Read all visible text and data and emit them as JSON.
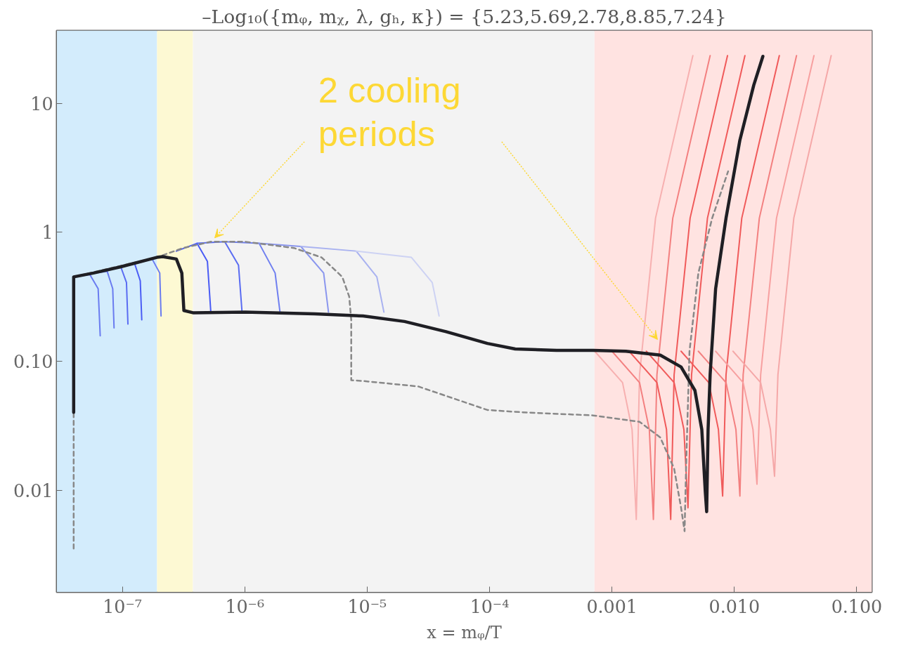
{
  "chart_data": {
    "type": "line",
    "title": "–Log₁₀({mᵩ, mᵪ, λ, gₕ, κ}) = {5.23,5.69,2.78,8.85,7.24}",
    "xlabel": "x = mᵩ/T",
    "log": "xy",
    "grid": false,
    "marker": "none",
    "xlim": [
      2.9e-08,
      0.133
    ],
    "ylim": [
      0.00163,
      36.6
    ],
    "xticks": [
      {
        "value": 1e-07,
        "label": "10⁻⁷"
      },
      {
        "value": 1e-06,
        "label": "10⁻⁶"
      },
      {
        "value": 1e-05,
        "label": "10⁻⁵"
      },
      {
        "value": 0.0001,
        "label": "10⁻⁴"
      },
      0.001,
      {
        "value": 0.01,
        "label": "0.010"
      },
      {
        "value": 0.1,
        "label": "0.100"
      }
    ],
    "yticks": [
      {
        "value": 0.01,
        "label": "0.01"
      },
      {
        "value": 0.1,
        "label": "0.10"
      },
      1,
      10
    ],
    "bands": [
      {
        "axis": "x",
        "from": 2.9e-08,
        "to": 1.92e-07,
        "color": "#d3ecfc"
      },
      {
        "axis": "x",
        "from": 1.92e-07,
        "to": 3.77e-07,
        "color": "#fdf9d3"
      },
      {
        "axis": "x",
        "from": 3.77e-07,
        "to": 0.00072,
        "color": "#f3f3f3"
      },
      {
        "axis": "x",
        "from": 0.00072,
        "to": 0.133,
        "color": "#ffe3e1"
      }
    ],
    "annotations": [
      "2 cooling periods"
    ],
    "series": [
      {
        "color": "#6a7cf0",
        "x": [
          4e-08,
          5.42e-08,
          6.34e-08,
          6.59e-08
        ],
        "values": [
          0.452,
          0.471,
          0.366,
          0.158
        ]
      },
      {
        "color": "#6a7cf0",
        "x": [
          5.8e-08,
          7.52e-08,
          8.34e-08,
          8.55e-08
        ],
        "values": [
          0.484,
          0.498,
          0.366,
          0.182
        ]
      },
      {
        "color": "#5a6cf2",
        "x": [
          7.52e-08,
          9.7e-08,
          1.08e-07,
          1.11e-07
        ],
        "values": [
          0.512,
          0.541,
          0.409,
          0.195
        ]
      },
      {
        "color": "#4a5cf5",
        "x": [
          9.7e-08,
          1.26e-07,
          1.4e-07,
          1.44e-07
        ],
        "values": [
          0.541,
          0.572,
          0.421,
          0.21
        ]
      },
      {
        "color": "#6a7cf0",
        "x": [
          1.26e-07,
          1.75e-07,
          2.02e-07,
          2.07e-07
        ],
        "values": [
          0.572,
          0.622,
          0.484,
          0.225
        ]
      },
      {
        "color": "#4a5cf5",
        "x": [
          2.76e-07,
          4.07e-07,
          4.95e-07,
          5.28e-07
        ],
        "values": [
          0.716,
          0.822,
          0.597,
          0.241
        ]
      },
      {
        "color": "#5a6cf2",
        "x": [
          4.07e-07,
          6.86e-07,
          8.89e-07,
          9.5e-07
        ],
        "values": [
          0.822,
          0.846,
          0.556,
          0.241
        ]
      },
      {
        "color": "#6f7ff0",
        "x": [
          6.86e-07,
          1.31e-06,
          1.77e-06,
          1.94e-06
        ],
        "values": [
          0.846,
          0.822,
          0.484,
          0.241
        ]
      },
      {
        "color": "#8a96ee",
        "x": [
          1.31e-06,
          2.87e-06,
          4.41e-06,
          4.83e-06
        ],
        "values": [
          0.822,
          0.778,
          0.484,
          0.241
        ]
      },
      {
        "color": "#a9b2f0",
        "x": [
          2.87e-06,
          8.13e-06,
          1.2e-05,
          1.37e-05
        ],
        "values": [
          0.778,
          0.716,
          0.452,
          0.241
        ]
      },
      {
        "color": "#cdd2f3",
        "x": [
          8.13e-06,
          2.3e-05,
          3.4e-05,
          3.87e-05
        ],
        "values": [
          0.716,
          0.64,
          0.409,
          0.225
        ]
      },
      {
        "color": "#f7b0b0",
        "x": [
          0.000723,
          0.00122,
          0.00146,
          0.00158,
          0.00168,
          0.00227,
          0.00458
        ],
        "values": [
          0.12,
          0.0686,
          0.0297,
          0.00597,
          0.0789,
          1.29,
          23.4
        ]
      },
      {
        "color": "#f38080",
        "x": [
          0.001,
          0.00168,
          0.00202,
          0.00218,
          0.00233,
          0.00314,
          0.00634
        ],
        "values": [
          0.12,
          0.0686,
          0.0297,
          0.00597,
          0.0789,
          1.29,
          23.4
        ]
      },
      {
        "color": "#f05a5a",
        "x": [
          0.00138,
          0.00233,
          0.00279,
          0.00302,
          0.00322,
          0.00435,
          0.00879
        ],
        "values": [
          0.12,
          0.0686,
          0.0297,
          0.00597,
          0.0789,
          1.29,
          23.4
        ]
      },
      {
        "color": "#f05a5a",
        "x": [
          0.00191,
          0.00322,
          0.00387,
          0.00418,
          0.00447,
          0.00603,
          0.0122
        ],
        "values": [
          0.12,
          0.0686,
          0.0297,
          0.00736,
          0.0789,
          1.29,
          23.4
        ]
      },
      {
        "color": "#f05a5a",
        "x": [
          0.00367,
          0.00618,
          0.00741,
          0.00802,
          0.00855,
          0.0115,
          0.0233
        ],
        "values": [
          0.12,
          0.0686,
          0.0297,
          0.00907,
          0.0789,
          1.29,
          23.4
        ]
      },
      {
        "color": "#f38080",
        "x": [
          0.00508,
          0.00855,
          0.0103,
          0.0111,
          0.0118,
          0.016,
          0.0322
        ],
        "values": [
          0.12,
          0.0686,
          0.0297,
          0.00907,
          0.0789,
          1.29,
          23.4
        ]
      },
      {
        "color": "#f7a0a0",
        "x": [
          0.00703,
          0.0118,
          0.0142,
          0.0153,
          0.0164,
          0.0221,
          0.0447
        ],
        "values": [
          0.12,
          0.0686,
          0.0297,
          0.0112,
          0.0789,
          1.29,
          23.4
        ]
      },
      {
        "color": "#f5a8a8",
        "x": [
          0.00975,
          0.0164,
          0.0197,
          0.0213,
          0.0227,
          0.0306,
          0.0618
        ],
        "values": [
          0.12,
          0.0686,
          0.0297,
          0.0129,
          0.0789,
          1.29,
          23.4
        ]
      },
      {
        "color": "#888888",
        "line_style": "dashed",
        "x": [
          4e-08,
          4e-08,
          1.91e-07,
          3.14e-07,
          5.28e-07,
          1.01e-06,
          2.52e-06,
          4.24e-06,
          6.26e-06,
          7.13e-06,
          7.41e-06,
          7.41e-06,
          9.25e-06,
          2.62e-05,
          9.6e-05,
          0.000185,
          0.0007,
          0.00168,
          0.00248,
          0.00322,
          0.00367,
          0.00392,
          0.00403,
          0.0043,
          0.00508,
          0.00659,
          0.00889
        ],
        "values": [
          0.00356,
          0.452,
          0.64,
          0.757,
          0.846,
          0.846,
          0.757,
          0.64,
          0.452,
          0.318,
          0.21,
          0.0716,
          0.0706,
          0.064,
          0.0421,
          0.0404,
          0.0382,
          0.0341,
          0.0258,
          0.0148,
          0.00736,
          0.00484,
          0.0148,
          0.12,
          0.484,
          1.29,
          2.97
        ]
      },
      {
        "color": "#1f1f24",
        "x": [
          4e-08,
          4e-08,
          5.8e-08,
          9.7e-08,
          1.91e-07,
          2.13e-07,
          2.76e-07,
          3.06e-07,
          3.18e-07,
          3.82e-07,
          1.01e-06,
          3.72e-06,
          9.25e-06,
          2.02e-05,
          4.41e-05,
          9.6e-05,
          0.000162,
          0.000353,
          0.0007,
          0.0013,
          0.00248,
          0.00367,
          0.00476,
          0.00542,
          0.00579,
          0.00594,
          0.0061,
          0.00634,
          0.00703,
          0.00855,
          0.0111,
          0.0144,
          0.0171
        ],
        "values": [
          0.0404,
          0.452,
          0.484,
          0.541,
          0.64,
          0.649,
          0.622,
          0.484,
          0.248,
          0.238,
          0.241,
          0.234,
          0.225,
          0.204,
          0.17,
          0.138,
          0.125,
          0.122,
          0.122,
          0.12,
          0.112,
          0.0907,
          0.0597,
          0.0297,
          0.00972,
          0.00686,
          0.0297,
          0.0789,
          0.366,
          1.29,
          5.19,
          13.8,
          23.1
        ]
      }
    ]
  }
}
